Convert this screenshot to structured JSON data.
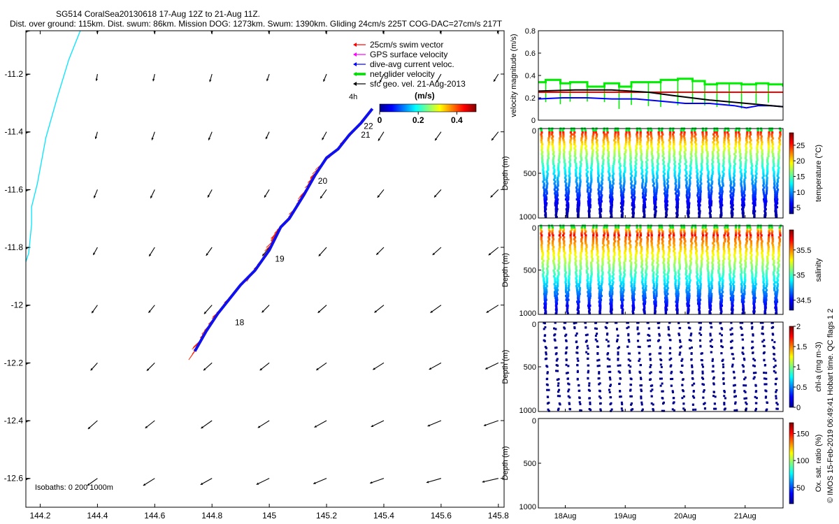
{
  "header": {
    "title": "SG514 CoralSea20130618 17-Aug 12Z to 21-Aug 11Z.",
    "subtitle": "Dist. over ground: 115km. Dist. swum: 86km. Mission DOG: 1273km. Swum: 1390km. Gliding 24cm/s 225T COG-DAC=27cm/s 217T"
  },
  "credit": "© IMOS 15-Feb-2019 06:49:41 Hobart time. QC flags 1  2",
  "chart_data": [
    {
      "type": "map",
      "name": "track-map",
      "xlim": [
        144.15,
        145.82
      ],
      "ylim": [
        -12.7,
        -11.05
      ],
      "x_ticks": [
        144.2,
        144.4,
        144.6,
        144.8,
        145,
        145.2,
        145.4,
        145.6,
        145.8
      ],
      "y_ticks": [
        -11.2,
        -11.4,
        -11.6,
        -11.8,
        -12,
        -12.2,
        -12.4,
        -12.6
      ],
      "x_tick_labels": [
        "144.2",
        "144.4",
        "144.6",
        "144.8",
        "145",
        "145.2",
        "145.4",
        "145.6",
        "145.8"
      ],
      "y_tick_labels": [
        "-11.2",
        "-11.4",
        "-11.6",
        "-11.8",
        "-12",
        "-12.2",
        "-12.4",
        "-12.6"
      ],
      "legend": {
        "entries": [
          {
            "label": "25cm/s swim vector",
            "color": "#ff0000"
          },
          {
            "label": "GPS surface velocity",
            "color": "#ff00ff"
          },
          {
            "label": "dive-avg current veloc.",
            "color": "#0000ff"
          },
          {
            "label": "net glider velocity",
            "color": "#00dd00"
          },
          {
            "label": "sfc geo. vel. 21-Aug-2013",
            "color": "#000000"
          }
        ],
        "placement": "top-right"
      },
      "colorbar": {
        "label": "(m/s)",
        "ticks": [
          "0",
          "0.2",
          "0.4"
        ],
        "range": [
          0,
          0.5
        ]
      },
      "time_label": "4h",
      "isobaths_label": "Isobaths: 0    200   1000m",
      "track": {
        "lon": [
          144.74,
          144.78,
          144.82,
          144.86,
          144.9,
          144.95,
          145.0,
          145.04,
          145.07,
          145.12,
          145.16,
          145.2,
          145.24,
          145.28,
          145.32,
          145.36
        ],
        "lat": [
          -12.16,
          -12.09,
          -12.03,
          -11.98,
          -11.93,
          -11.88,
          -11.81,
          -11.73,
          -11.7,
          -11.62,
          -11.55,
          -11.49,
          -11.46,
          -11.41,
          -11.37,
          -11.32
        ]
      },
      "day_labels": [
        {
          "text": "18",
          "lon": 144.88,
          "lat": -12.07
        },
        {
          "text": "19",
          "lon": 145.02,
          "lat": -11.85
        },
        {
          "text": "20",
          "lon": 145.17,
          "lat": -11.58
        },
        {
          "text": "21",
          "lon": 145.32,
          "lat": -11.42
        },
        {
          "text": "22",
          "lon": 145.33,
          "lat": -11.39
        }
      ],
      "coastline": {
        "lon": [
          144.34,
          144.3,
          144.26,
          144.22,
          144.19,
          144.17,
          144.17,
          144.16,
          144.14
        ],
        "lat": [
          -11.05,
          -11.15,
          -11.28,
          -11.42,
          -11.58,
          -11.66,
          -11.72,
          -11.82,
          -11.88
        ]
      }
    },
    {
      "type": "line",
      "name": "velocity-magnitude",
      "ylabel": "velocity magnitude (m/s)",
      "xlim": [
        0,
        1
      ],
      "ylim": [
        0,
        0.8
      ],
      "y_ticks": [
        "0",
        "0.2",
        "0.4",
        "0.6",
        "0.8"
      ],
      "series": [
        {
          "color": "#ff0000",
          "x": [
            0,
            1
          ],
          "y": [
            0.25,
            0.25
          ]
        },
        {
          "color": "#0000ff",
          "x": [
            0,
            0.1,
            0.2,
            0.3,
            0.4,
            0.5,
            0.6,
            0.7,
            0.8,
            0.85,
            0.9,
            0.95,
            1.0
          ],
          "y": [
            0.19,
            0.2,
            0.2,
            0.19,
            0.19,
            0.17,
            0.15,
            0.15,
            0.13,
            0.11,
            0.13,
            0.13,
            0.12
          ]
        },
        {
          "color": "#000000",
          "x": [
            0,
            0.15,
            0.3,
            0.45,
            0.55,
            0.7,
            0.85,
            1.0
          ],
          "y": [
            0.26,
            0.27,
            0.27,
            0.25,
            0.22,
            0.18,
            0.15,
            0.12
          ]
        }
      ],
      "green_steps": {
        "color": "#00ee00",
        "x": [
          0.0,
          0.03,
          0.09,
          0.13,
          0.2,
          0.27,
          0.33,
          0.38,
          0.45,
          0.5,
          0.57,
          0.63,
          0.68,
          0.73,
          0.78,
          0.83,
          0.89,
          0.94,
          1.0
        ],
        "y": [
          0.34,
          0.36,
          0.33,
          0.34,
          0.3,
          0.33,
          0.3,
          0.34,
          0.34,
          0.36,
          0.37,
          0.35,
          0.32,
          0.33,
          0.33,
          0.32,
          0.33,
          0.32,
          0.3
        ]
      }
    },
    {
      "type": "scatter",
      "name": "temperature",
      "ylabel": "Depth (m)",
      "cbar_label": "temperature (°C)",
      "cbar_ticks": [
        "5",
        "10",
        "15",
        "20",
        "25"
      ],
      "cbar_range": [
        3,
        29
      ],
      "y_ticks": [
        "0",
        "500",
        "1000"
      ],
      "ylim": [
        0,
        1000
      ],
      "profiles": 22
    },
    {
      "type": "scatter",
      "name": "salinity",
      "ylabel": "Depth (m)",
      "cbar_label": "salinity",
      "cbar_ticks": [
        "34.5",
        "35",
        "35.5"
      ],
      "cbar_range": [
        34.3,
        35.9
      ],
      "y_ticks": [
        "0",
        "500",
        "1000"
      ],
      "ylim": [
        0,
        1000
      ],
      "profiles": 22
    },
    {
      "type": "scatter",
      "name": "chlorophyll",
      "ylabel": "Depth (m)",
      "cbar_label": "chl-a (mg m-3)",
      "cbar_ticks": [
        "0",
        "0.5",
        "1",
        "1.5",
        "2"
      ],
      "cbar_range": [
        0,
        2
      ],
      "y_ticks": [
        "0",
        "500",
        "1000"
      ],
      "ylim": [
        0,
        1000
      ]
    },
    {
      "type": "scatter",
      "name": "oxygen",
      "ylabel": "Depth (m)",
      "cbar_label": "Ox. sat. ratio (%)",
      "cbar_ticks": [
        "50",
        "100",
        "150"
      ],
      "cbar_range": [
        20,
        170
      ],
      "y_ticks": [
        "0",
        "500",
        "1000"
      ],
      "ylim": [
        0,
        1000
      ],
      "x_tick_labels": [
        "18Aug",
        "19Aug",
        "20Aug",
        "21Aug"
      ]
    }
  ]
}
